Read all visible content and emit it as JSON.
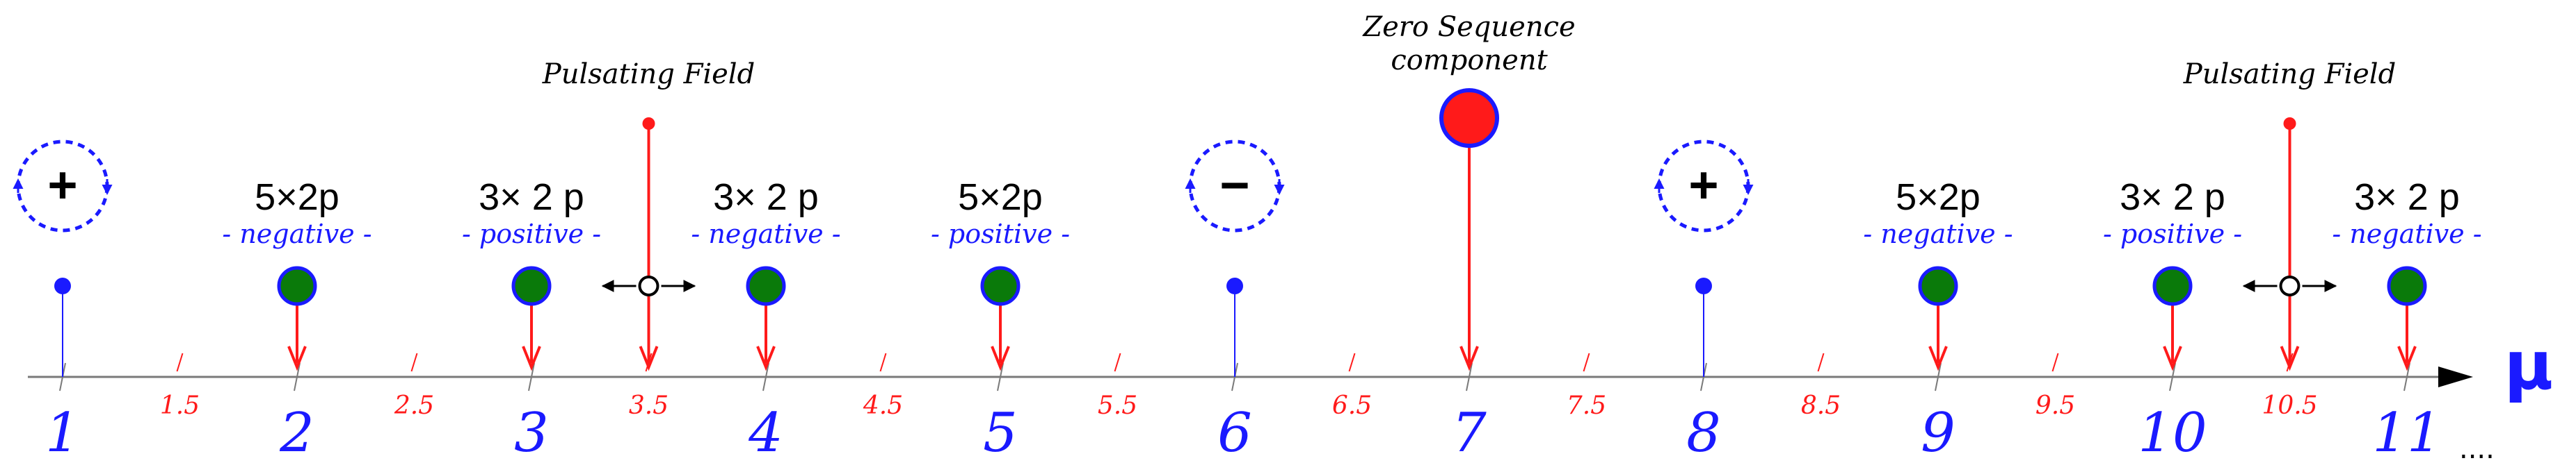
{
  "axis": {
    "symbol": "μ",
    "ellipsis": "....",
    "major_ticks": [
      "1",
      "2",
      "3",
      "4",
      "5",
      "6",
      "7",
      "8",
      "9",
      "10",
      "11"
    ],
    "minor_ticks": [
      "1.5",
      "2.5",
      "3.5",
      "4.5",
      "5.5",
      "6.5",
      "7.5",
      "8.5",
      "9.5",
      "10.5"
    ]
  },
  "rotating_fields": [
    {
      "mu": 1,
      "sign": "+"
    },
    {
      "mu": 6,
      "sign": "−"
    },
    {
      "mu": 8,
      "sign": "+"
    }
  ],
  "harmonics": [
    {
      "mu": 2,
      "formula": "5×2p",
      "sequence": "- negative -"
    },
    {
      "mu": 3,
      "formula": "3× 2 p",
      "sequence": "- positive -"
    },
    {
      "mu": 4,
      "formula": "3× 2 p",
      "sequence": "- negative -"
    },
    {
      "mu": 5,
      "formula": "5×2p",
      "sequence": "- positive -"
    },
    {
      "mu": 9,
      "formula": "5×2p",
      "sequence": "- negative -"
    },
    {
      "mu": 10,
      "formula": "3× 2 p",
      "sequence": "- positive -"
    },
    {
      "mu": 11,
      "formula": "3× 2 p",
      "sequence": "- negative -"
    }
  ],
  "pulsating_fields": [
    {
      "mu": 3.5,
      "label": "Pulsating Field"
    },
    {
      "mu": 10.5,
      "label": "Pulsating Field"
    }
  ],
  "zero_sequence": {
    "mu": 7,
    "label_line1": "Zero Sequence",
    "label_line2": "component"
  },
  "colors": {
    "axis": "#7a7a7a",
    "major_label": "#1a1aff",
    "minor_label": "#ff1a1a",
    "arrow": "#ff1a1a",
    "green_fill": "#0a7a0a",
    "blue": "#1a1aff",
    "red_circle": "#ff1a1a",
    "black": "#000000"
  }
}
